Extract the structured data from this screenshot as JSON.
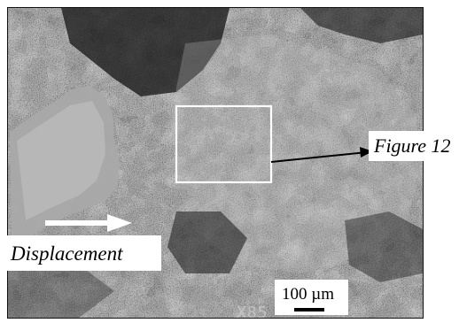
{
  "labels": {
    "displacement": "Displacement",
    "figure_ref": "Figure 12",
    "scale_bar": "100 µm",
    "magnification": "X85"
  },
  "colors": {
    "background": "#ffffff",
    "micrograph_dark": "#1c1c1c",
    "micrograph_light": "#cfcfcf",
    "inset_box": "#ffffff",
    "arrow_white": "#ffffff",
    "arrow_black": "#000000"
  },
  "icons": {
    "displacement_arrow": "arrow-right-icon",
    "figure_pointer_arrow": "arrow-right-icon"
  }
}
